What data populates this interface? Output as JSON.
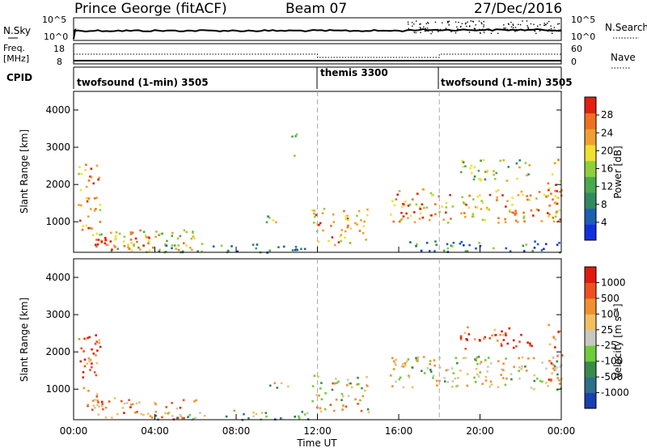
{
  "header": {
    "station": "Prince George (fitACF)",
    "beam": "Beam 07",
    "date": "27/Dec/2016"
  },
  "strips": {
    "nsky_label": "N.Sky",
    "nsearch_label": "N.Search",
    "nsky_ticks": [
      "10^5",
      "10^0"
    ],
    "nsearch_ticks": [
      "10^5",
      "10^0"
    ],
    "freq_label_1": "Freq.",
    "freq_label_2": "[MHz]",
    "freq_ticks": [
      "18",
      "8"
    ],
    "nave_label": "Nave",
    "nave_ticks": [
      "60",
      "0"
    ],
    "cpid_label": "CPID",
    "cpid_segments": [
      {
        "text": "twofsound (1-min) 3505",
        "start": "00:00",
        "end": "12:00"
      },
      {
        "text": "themis 3300",
        "start": "12:00",
        "end": "18:00"
      },
      {
        "text": "twofsound (1-min) 3505",
        "start": "18:00",
        "end": "24:00"
      }
    ]
  },
  "chart_data": [
    {
      "type": "heatmap",
      "panel": "power",
      "ylabel": "Slant Range [km]",
      "ylim": [
        180,
        4500
      ],
      "yticks": [
        "1000",
        "2000",
        "3000",
        "4000"
      ],
      "xlim": [
        "00:00",
        "24:00"
      ],
      "colorbar_label": "Power [dB]",
      "colorbar_ticks": [
        "28",
        "24",
        "20",
        "16",
        "12",
        "8",
        "4"
      ],
      "colors": [
        "#1030e0",
        "#1d5fb0",
        "#2f8a60",
        "#4aa84e",
        "#8fcf3a",
        "#f0e030",
        "#f0a030",
        "#f07020",
        "#e02010"
      ],
      "scatter_regions": [
        {
          "t0": 0.2,
          "t1": 1.3,
          "r0": 800,
          "r1": 2600,
          "level": 0.75
        },
        {
          "t0": 0.5,
          "t1": 6.0,
          "r0": 200,
          "r1": 800,
          "level": 0.6
        },
        {
          "t0": 1.0,
          "t1": 4.0,
          "r0": 250,
          "r1": 750,
          "level": 0.85
        },
        {
          "t0": 4.0,
          "t1": 11.5,
          "r0": 200,
          "r1": 450,
          "level": 0.3
        },
        {
          "t0": 9.2,
          "t1": 10.6,
          "r0": 1000,
          "r1": 1200,
          "level": 0.5
        },
        {
          "t0": 10.7,
          "t1": 11.0,
          "r0": 2600,
          "r1": 3400,
          "level": 0.3
        },
        {
          "t0": 11.7,
          "t1": 14.5,
          "r0": 400,
          "r1": 1400,
          "level": 0.7
        },
        {
          "t0": 15.5,
          "t1": 24.0,
          "r0": 1000,
          "r1": 1900,
          "level": 0.7
        },
        {
          "t0": 16.5,
          "t1": 24.0,
          "r0": 200,
          "r1": 500,
          "level": 0.25
        },
        {
          "t0": 19.0,
          "t1": 22.5,
          "r0": 2100,
          "r1": 2700,
          "level": 0.5
        },
        {
          "t0": 23.3,
          "t1": 24.0,
          "r0": 1000,
          "r1": 2800,
          "level": 0.8
        }
      ]
    },
    {
      "type": "heatmap",
      "panel": "velocity",
      "ylabel": "Slant Range [km]",
      "ylim": [
        180,
        4500
      ],
      "yticks": [
        "1000",
        "2000",
        "3000",
        "4000"
      ],
      "xlim": [
        "00:00",
        "24:00"
      ],
      "xticks": [
        "00:00",
        "04:00",
        "08:00",
        "12:00",
        "16:00",
        "20:00",
        "00:00"
      ],
      "xlabel": "Time UT",
      "colorbar_label": "Velocity [m s⁻¹]",
      "colorbar_ticks": [
        "1000",
        "500",
        "100",
        "25",
        "-25",
        "-100",
        "-500",
        "-1000"
      ],
      "colors": [
        "#1a3fb0",
        "#2e6f8a",
        "#3a8a4a",
        "#6fcc3a",
        "#c8c8c0",
        "#f0c060",
        "#f09030",
        "#f05020",
        "#e01a10"
      ],
      "scatter_regions": [
        {
          "t0": 0.2,
          "t1": 1.3,
          "r0": 800,
          "r1": 2600,
          "level": 0.85
        },
        {
          "t0": 0.5,
          "t1": 6.0,
          "r0": 200,
          "r1": 800,
          "level": 0.7
        },
        {
          "t0": 4.0,
          "t1": 11.5,
          "r0": 200,
          "r1": 450,
          "level": 0.35
        },
        {
          "t0": 9.2,
          "t1": 10.6,
          "r0": 1000,
          "r1": 1200,
          "level": 0.5
        },
        {
          "t0": 11.7,
          "t1": 14.5,
          "r0": 400,
          "r1": 1400,
          "level": 0.55
        },
        {
          "t0": 15.5,
          "t1": 24.0,
          "r0": 1000,
          "r1": 1900,
          "level": 0.5
        },
        {
          "t0": 19.0,
          "t1": 22.5,
          "r0": 2100,
          "r1": 2700,
          "level": 0.9
        },
        {
          "t0": 23.3,
          "t1": 24.0,
          "r0": 1000,
          "r1": 2800,
          "level": 0.7
        }
      ]
    }
  ]
}
